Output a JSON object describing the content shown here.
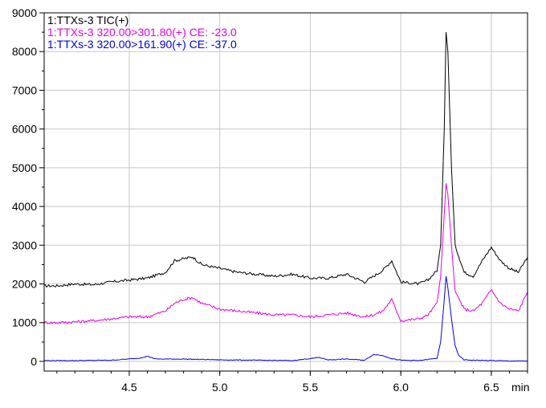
{
  "chart_data": {
    "type": "line",
    "title": "",
    "xlabel": "",
    "ylabel": "",
    "x_unit_label": "min",
    "xlim": [
      4.03,
      6.7
    ],
    "ylim": [
      -250,
      9000
    ],
    "x_ticks": [
      4.5,
      5.0,
      5.5,
      6.0,
      6.5
    ],
    "x_tick_labels": [
      "4.5",
      "5.0",
      "5.5",
      "6.0",
      "6.5"
    ],
    "y_ticks": [
      0,
      1000,
      2000,
      3000,
      4000,
      5000,
      6000,
      7000,
      8000,
      9000
    ],
    "y_tick_labels": [
      "0",
      "1000",
      "2000",
      "3000",
      "4000",
      "5000",
      "6000",
      "7000",
      "8000",
      "9000"
    ],
    "grid": true,
    "legend_position": "top-left",
    "series": [
      {
        "name": "1:TTXs-3 TIC(+)",
        "color": "#000000",
        "points": [
          [
            4.03,
            1950
          ],
          [
            4.1,
            1950
          ],
          [
            4.2,
            2000
          ],
          [
            4.3,
            1980
          ],
          [
            4.4,
            2050
          ],
          [
            4.5,
            2100
          ],
          [
            4.6,
            2150
          ],
          [
            4.7,
            2300
          ],
          [
            4.75,
            2600
          ],
          [
            4.8,
            2650
          ],
          [
            4.85,
            2700
          ],
          [
            4.9,
            2500
          ],
          [
            5.0,
            2400
          ],
          [
            5.1,
            2300
          ],
          [
            5.2,
            2250
          ],
          [
            5.3,
            2200
          ],
          [
            5.4,
            2250
          ],
          [
            5.5,
            2150
          ],
          [
            5.6,
            2150
          ],
          [
            5.7,
            2250
          ],
          [
            5.8,
            2050
          ],
          [
            5.85,
            2200
          ],
          [
            5.9,
            2350
          ],
          [
            5.95,
            2600
          ],
          [
            6.0,
            2050
          ],
          [
            6.1,
            2000
          ],
          [
            6.15,
            2100
          ],
          [
            6.2,
            2350
          ],
          [
            6.22,
            3000
          ],
          [
            6.24,
            6000
          ],
          [
            6.25,
            8500
          ],
          [
            6.26,
            8000
          ],
          [
            6.28,
            5000
          ],
          [
            6.3,
            3000
          ],
          [
            6.35,
            2300
          ],
          [
            6.4,
            2200
          ],
          [
            6.45,
            2600
          ],
          [
            6.5,
            2950
          ],
          [
            6.55,
            2600
          ],
          [
            6.6,
            2400
          ],
          [
            6.65,
            2300
          ],
          [
            6.7,
            2700
          ]
        ]
      },
      {
        "name": "1:TTXs-3 320.00>301.80(+) CE: -23.0",
        "color": "#e600e6",
        "points": [
          [
            4.03,
            1000
          ],
          [
            4.1,
            1000
          ],
          [
            4.2,
            1020
          ],
          [
            4.3,
            1050
          ],
          [
            4.4,
            1100
          ],
          [
            4.5,
            1150
          ],
          [
            4.6,
            1150
          ],
          [
            4.7,
            1300
          ],
          [
            4.75,
            1500
          ],
          [
            4.8,
            1600
          ],
          [
            4.85,
            1650
          ],
          [
            4.9,
            1500
          ],
          [
            5.0,
            1350
          ],
          [
            5.1,
            1300
          ],
          [
            5.2,
            1250
          ],
          [
            5.3,
            1200
          ],
          [
            5.4,
            1200
          ],
          [
            5.5,
            1150
          ],
          [
            5.6,
            1200
          ],
          [
            5.7,
            1250
          ],
          [
            5.8,
            1150
          ],
          [
            5.85,
            1200
          ],
          [
            5.9,
            1300
          ],
          [
            5.95,
            1600
          ],
          [
            6.0,
            1050
          ],
          [
            6.1,
            1100
          ],
          [
            6.15,
            1200
          ],
          [
            6.2,
            1500
          ],
          [
            6.22,
            2200
          ],
          [
            6.24,
            3800
          ],
          [
            6.25,
            4600
          ],
          [
            6.26,
            4300
          ],
          [
            6.28,
            3000
          ],
          [
            6.3,
            1800
          ],
          [
            6.35,
            1350
          ],
          [
            6.4,
            1300
          ],
          [
            6.45,
            1500
          ],
          [
            6.5,
            1850
          ],
          [
            6.55,
            1500
          ],
          [
            6.6,
            1350
          ],
          [
            6.65,
            1300
          ],
          [
            6.7,
            1800
          ]
        ]
      },
      {
        "name": "1:TTXs-3 320.00>161.90(+) CE: -37.0",
        "color": "#0000e6",
        "points": [
          [
            4.03,
            20
          ],
          [
            4.2,
            20
          ],
          [
            4.4,
            30
          ],
          [
            4.55,
            80
          ],
          [
            4.6,
            130
          ],
          [
            4.65,
            60
          ],
          [
            4.8,
            60
          ],
          [
            5.0,
            40
          ],
          [
            5.2,
            30
          ],
          [
            5.4,
            20
          ],
          [
            5.55,
            100
          ],
          [
            5.6,
            40
          ],
          [
            5.7,
            60
          ],
          [
            5.8,
            30
          ],
          [
            5.85,
            180
          ],
          [
            5.9,
            150
          ],
          [
            5.95,
            70
          ],
          [
            6.0,
            30
          ],
          [
            6.1,
            20
          ],
          [
            6.2,
            80
          ],
          [
            6.22,
            500
          ],
          [
            6.24,
            1600
          ],
          [
            6.25,
            2200
          ],
          [
            6.26,
            1900
          ],
          [
            6.28,
            1100
          ],
          [
            6.3,
            400
          ],
          [
            6.32,
            150
          ],
          [
            6.35,
            40
          ],
          [
            6.4,
            30
          ],
          [
            6.5,
            20
          ],
          [
            6.6,
            10
          ],
          [
            6.7,
            10
          ]
        ]
      }
    ]
  }
}
